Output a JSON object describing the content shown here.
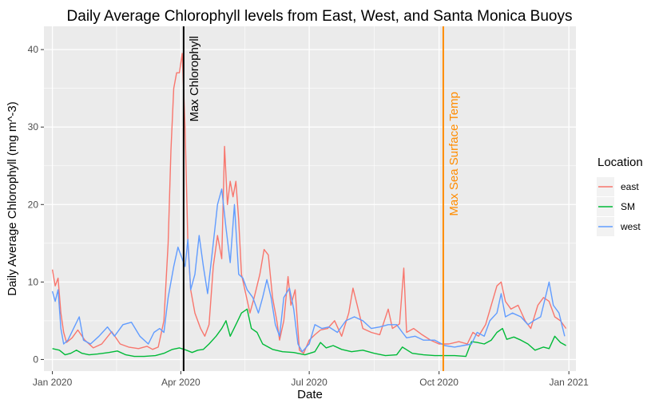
{
  "chart_data": {
    "type": "line",
    "title": "Daily Average Chlorophyll levels from East, West, and Santa Monica Buoys",
    "xlabel": "Date",
    "ylabel": "Daily Average Chlorophyll (mg m^-3)",
    "xlim": [
      "2019-12-26",
      "2021-01-06"
    ],
    "ylim": [
      -1.5,
      43
    ],
    "x_ticks": [
      {
        "date": "2020-01-01",
        "label": "Jan 2020"
      },
      {
        "date": "2020-04-01",
        "label": "Apr 2020"
      },
      {
        "date": "2020-07-01",
        "label": "Jul 2020"
      },
      {
        "date": "2020-10-01",
        "label": "Oct 2020"
      },
      {
        "date": "2021-01-01",
        "label": "Jan 2021"
      }
    ],
    "y_ticks": [
      0,
      10,
      20,
      30,
      40
    ],
    "grid": true,
    "legend": {
      "title": "Location",
      "position": "right"
    },
    "annotations": [
      {
        "date": "2020-04-03",
        "label": "Max Chlorophyll",
        "color": "#000000"
      },
      {
        "date": "2020-10-04",
        "label": "Max Sea Surface Temp",
        "color": "#FF8C00"
      }
    ],
    "series": [
      {
        "name": "east",
        "color": "#F8766D",
        "points": [
          [
            "2020-01-01",
            11.6
          ],
          [
            "2020-01-03",
            9.5
          ],
          [
            "2020-01-05",
            10.5
          ],
          [
            "2020-01-07",
            6.0
          ],
          [
            "2020-01-09",
            3.5
          ],
          [
            "2020-01-11",
            2.2
          ],
          [
            "2020-01-15",
            2.8
          ],
          [
            "2020-01-19",
            3.8
          ],
          [
            "2020-01-24",
            2.5
          ],
          [
            "2020-01-30",
            1.5
          ],
          [
            "2020-02-05",
            2.0
          ],
          [
            "2020-02-12",
            3.6
          ],
          [
            "2020-02-18",
            2.0
          ],
          [
            "2020-02-24",
            1.6
          ],
          [
            "2020-03-02",
            1.4
          ],
          [
            "2020-03-08",
            1.7
          ],
          [
            "2020-03-12",
            1.3
          ],
          [
            "2020-03-16",
            1.6
          ],
          [
            "2020-03-20",
            5.0
          ],
          [
            "2020-03-23",
            15.0
          ],
          [
            "2020-03-25",
            27.0
          ],
          [
            "2020-03-27",
            35.0
          ],
          [
            "2020-03-29",
            37.0
          ],
          [
            "2020-03-31",
            37.0
          ],
          [
            "2020-04-02",
            39.5
          ],
          [
            "2020-04-04",
            30.0
          ],
          [
            "2020-04-06",
            15.0
          ],
          [
            "2020-04-08",
            9.0
          ],
          [
            "2020-04-11",
            6.0
          ],
          [
            "2020-04-15",
            4.0
          ],
          [
            "2020-04-18",
            3.0
          ],
          [
            "2020-04-21",
            4.5
          ],
          [
            "2020-04-24",
            12.0
          ],
          [
            "2020-04-27",
            16.0
          ],
          [
            "2020-04-30",
            13.0
          ],
          [
            "2020-05-02",
            27.5
          ],
          [
            "2020-05-04",
            20.0
          ],
          [
            "2020-05-06",
            23.0
          ],
          [
            "2020-05-08",
            21.0
          ],
          [
            "2020-05-10",
            23.0
          ],
          [
            "2020-05-12",
            18.0
          ],
          [
            "2020-05-14",
            11.0
          ],
          [
            "2020-05-17",
            8.5
          ],
          [
            "2020-05-20",
            6.0
          ],
          [
            "2020-05-23",
            8.0
          ],
          [
            "2020-05-27",
            11.0
          ],
          [
            "2020-05-30",
            14.2
          ],
          [
            "2020-06-02",
            13.5
          ],
          [
            "2020-06-05",
            8.0
          ],
          [
            "2020-06-08",
            5.0
          ],
          [
            "2020-06-10",
            2.5
          ],
          [
            "2020-06-13",
            5.0
          ],
          [
            "2020-06-16",
            10.7
          ],
          [
            "2020-06-18",
            7.0
          ],
          [
            "2020-06-21",
            9.0
          ],
          [
            "2020-06-24",
            1.2
          ],
          [
            "2020-06-27",
            0.8
          ],
          [
            "2020-07-01",
            2.5
          ],
          [
            "2020-07-05",
            3.2
          ],
          [
            "2020-07-09",
            3.8
          ],
          [
            "2020-07-14",
            4.0
          ],
          [
            "2020-07-19",
            5.0
          ],
          [
            "2020-07-24",
            3.0
          ],
          [
            "2020-07-29",
            6.0
          ],
          [
            "2020-08-01",
            9.2
          ],
          [
            "2020-08-04",
            7.0
          ],
          [
            "2020-08-08",
            4.0
          ],
          [
            "2020-08-14",
            3.5
          ],
          [
            "2020-08-20",
            3.2
          ],
          [
            "2020-08-26",
            6.5
          ],
          [
            "2020-08-29",
            4.0
          ],
          [
            "2020-09-03",
            4.6
          ],
          [
            "2020-09-06",
            11.8
          ],
          [
            "2020-09-08",
            3.5
          ],
          [
            "2020-09-13",
            4.0
          ],
          [
            "2020-09-19",
            3.2
          ],
          [
            "2020-09-25",
            2.5
          ],
          [
            "2020-10-01",
            2.0
          ],
          [
            "2020-10-08",
            2.0
          ],
          [
            "2020-10-15",
            2.3
          ],
          [
            "2020-10-21",
            2.0
          ],
          [
            "2020-10-25",
            3.5
          ],
          [
            "2020-10-29",
            3.0
          ],
          [
            "2020-11-03",
            4.5
          ],
          [
            "2020-11-07",
            7.0
          ],
          [
            "2020-11-11",
            9.5
          ],
          [
            "2020-11-14",
            10.0
          ],
          [
            "2020-11-17",
            7.5
          ],
          [
            "2020-11-21",
            6.5
          ],
          [
            "2020-11-26",
            7.0
          ],
          [
            "2020-12-01",
            5.0
          ],
          [
            "2020-12-05",
            4.0
          ],
          [
            "2020-12-10",
            7.0
          ],
          [
            "2020-12-14",
            8.0
          ],
          [
            "2020-12-18",
            7.5
          ],
          [
            "2020-12-22",
            5.5
          ],
          [
            "2020-12-26",
            5.0
          ],
          [
            "2020-12-30",
            4.0
          ]
        ]
      },
      {
        "name": "SM",
        "color": "#00BA38",
        "points": [
          [
            "2020-01-01",
            1.4
          ],
          [
            "2020-01-06",
            1.2
          ],
          [
            "2020-01-10",
            0.6
          ],
          [
            "2020-01-14",
            0.8
          ],
          [
            "2020-01-18",
            1.2
          ],
          [
            "2020-01-22",
            0.8
          ],
          [
            "2020-01-27",
            0.6
          ],
          [
            "2020-02-02",
            0.7
          ],
          [
            "2020-02-10",
            0.9
          ],
          [
            "2020-02-16",
            1.1
          ],
          [
            "2020-02-22",
            0.6
          ],
          [
            "2020-02-28",
            0.4
          ],
          [
            "2020-03-06",
            0.4
          ],
          [
            "2020-03-14",
            0.5
          ],
          [
            "2020-03-20",
            0.8
          ],
          [
            "2020-03-26",
            1.3
          ],
          [
            "2020-03-31",
            1.5
          ],
          [
            "2020-04-05",
            1.2
          ],
          [
            "2020-04-09",
            0.9
          ],
          [
            "2020-04-13",
            1.2
          ],
          [
            "2020-04-17",
            1.3
          ],
          [
            "2020-04-21",
            2.0
          ],
          [
            "2020-04-26",
            3.0
          ],
          [
            "2020-04-30",
            4.0
          ],
          [
            "2020-05-03",
            5.0
          ],
          [
            "2020-05-06",
            3.0
          ],
          [
            "2020-05-10",
            4.5
          ],
          [
            "2020-05-14",
            6.0
          ],
          [
            "2020-05-18",
            6.5
          ],
          [
            "2020-05-21",
            4.0
          ],
          [
            "2020-05-25",
            3.5
          ],
          [
            "2020-05-29",
            2.0
          ],
          [
            "2020-06-05",
            1.3
          ],
          [
            "2020-06-12",
            1.0
          ],
          [
            "2020-06-20",
            0.9
          ],
          [
            "2020-06-28",
            0.6
          ],
          [
            "2020-07-05",
            1.0
          ],
          [
            "2020-07-09",
            2.2
          ],
          [
            "2020-07-13",
            1.5
          ],
          [
            "2020-07-18",
            1.8
          ],
          [
            "2020-07-24",
            1.3
          ],
          [
            "2020-07-31",
            1.0
          ],
          [
            "2020-08-08",
            1.2
          ],
          [
            "2020-08-16",
            0.8
          ],
          [
            "2020-08-24",
            0.5
          ],
          [
            "2020-09-01",
            0.6
          ],
          [
            "2020-09-05",
            1.6
          ],
          [
            "2020-09-12",
            0.8
          ],
          [
            "2020-09-20",
            0.6
          ],
          [
            "2020-09-28",
            0.5
          ],
          [
            "2020-10-05",
            0.5
          ],
          [
            "2020-10-12",
            0.5
          ],
          [
            "2020-10-20",
            0.4
          ],
          [
            "2020-10-24",
            2.3
          ],
          [
            "2020-10-28",
            2.2
          ],
          [
            "2020-11-02",
            2.0
          ],
          [
            "2020-11-07",
            2.5
          ],
          [
            "2020-11-11",
            3.5
          ],
          [
            "2020-11-15",
            4.0
          ],
          [
            "2020-11-18",
            2.6
          ],
          [
            "2020-11-23",
            2.9
          ],
          [
            "2020-11-28",
            2.5
          ],
          [
            "2020-12-03",
            2.0
          ],
          [
            "2020-12-08",
            1.2
          ],
          [
            "2020-12-14",
            1.6
          ],
          [
            "2020-12-18",
            1.4
          ],
          [
            "2020-12-22",
            3.0
          ],
          [
            "2020-12-26",
            2.2
          ],
          [
            "2020-12-30",
            1.8
          ]
        ]
      },
      {
        "name": "west",
        "color": "#619CFF",
        "points": [
          [
            "2020-01-01",
            8.8
          ],
          [
            "2020-01-03",
            7.5
          ],
          [
            "2020-01-05",
            9.0
          ],
          [
            "2020-01-07",
            4.0
          ],
          [
            "2020-01-09",
            2.0
          ],
          [
            "2020-01-12",
            2.5
          ],
          [
            "2020-01-16",
            4.0
          ],
          [
            "2020-01-20",
            5.5
          ],
          [
            "2020-01-23",
            2.5
          ],
          [
            "2020-01-28",
            2.0
          ],
          [
            "2020-02-03",
            3.0
          ],
          [
            "2020-02-09",
            4.2
          ],
          [
            "2020-02-14",
            3.0
          ],
          [
            "2020-02-20",
            4.5
          ],
          [
            "2020-02-26",
            4.8
          ],
          [
            "2020-03-03",
            3.0
          ],
          [
            "2020-03-09",
            2.0
          ],
          [
            "2020-03-13",
            3.5
          ],
          [
            "2020-03-17",
            4.0
          ],
          [
            "2020-03-20",
            3.5
          ],
          [
            "2020-03-23",
            8.0
          ],
          [
            "2020-03-27",
            12.0
          ],
          [
            "2020-03-30",
            14.5
          ],
          [
            "2020-04-02",
            13.0
          ],
          [
            "2020-04-04",
            12.0
          ],
          [
            "2020-04-06",
            15.5
          ],
          [
            "2020-04-08",
            9.0
          ],
          [
            "2020-04-11",
            11.0
          ],
          [
            "2020-04-14",
            16.0
          ],
          [
            "2020-04-17",
            12.0
          ],
          [
            "2020-04-20",
            8.5
          ],
          [
            "2020-04-24",
            15.0
          ],
          [
            "2020-04-27",
            20.0
          ],
          [
            "2020-04-30",
            22.0
          ],
          [
            "2020-05-03",
            17.0
          ],
          [
            "2020-05-06",
            12.5
          ],
          [
            "2020-05-09",
            20.0
          ],
          [
            "2020-05-12",
            11.0
          ],
          [
            "2020-05-15",
            10.5
          ],
          [
            "2020-05-18",
            9.0
          ],
          [
            "2020-05-22",
            8.0
          ],
          [
            "2020-05-26",
            6.0
          ],
          [
            "2020-05-29",
            8.0
          ],
          [
            "2020-06-01",
            10.3
          ],
          [
            "2020-06-04",
            8.0
          ],
          [
            "2020-06-07",
            4.5
          ],
          [
            "2020-06-10",
            3.0
          ],
          [
            "2020-06-13",
            8.0
          ],
          [
            "2020-06-17",
            9.2
          ],
          [
            "2020-06-20",
            6.5
          ],
          [
            "2020-06-23",
            2.0
          ],
          [
            "2020-06-26",
            1.0
          ],
          [
            "2020-07-01",
            2.0
          ],
          [
            "2020-07-05",
            4.5
          ],
          [
            "2020-07-10",
            4.0
          ],
          [
            "2020-07-15",
            4.2
          ],
          [
            "2020-07-21",
            3.5
          ],
          [
            "2020-07-27",
            5.0
          ],
          [
            "2020-08-02",
            5.5
          ],
          [
            "2020-08-08",
            5.0
          ],
          [
            "2020-08-14",
            4.0
          ],
          [
            "2020-08-20",
            4.2
          ],
          [
            "2020-08-26",
            4.5
          ],
          [
            "2020-09-01",
            4.5
          ],
          [
            "2020-09-05",
            3.5
          ],
          [
            "2020-09-08",
            2.8
          ],
          [
            "2020-09-14",
            3.0
          ],
          [
            "2020-09-20",
            2.5
          ],
          [
            "2020-09-28",
            2.5
          ],
          [
            "2020-10-05",
            1.8
          ],
          [
            "2020-10-12",
            1.6
          ],
          [
            "2020-10-18",
            1.8
          ],
          [
            "2020-10-24",
            2.0
          ],
          [
            "2020-10-28",
            3.5
          ],
          [
            "2020-11-02",
            3.0
          ],
          [
            "2020-11-06",
            5.0
          ],
          [
            "2020-11-11",
            6.0
          ],
          [
            "2020-11-14",
            8.5
          ],
          [
            "2020-11-17",
            5.5
          ],
          [
            "2020-11-22",
            6.0
          ],
          [
            "2020-11-28",
            5.5
          ],
          [
            "2020-12-03",
            4.5
          ],
          [
            "2020-12-07",
            5.0
          ],
          [
            "2020-12-12",
            5.5
          ],
          [
            "2020-12-16",
            8.5
          ],
          [
            "2020-12-18",
            10.0
          ],
          [
            "2020-12-21",
            7.0
          ],
          [
            "2020-12-25",
            6.0
          ],
          [
            "2020-12-29",
            3.0
          ]
        ]
      }
    ]
  }
}
